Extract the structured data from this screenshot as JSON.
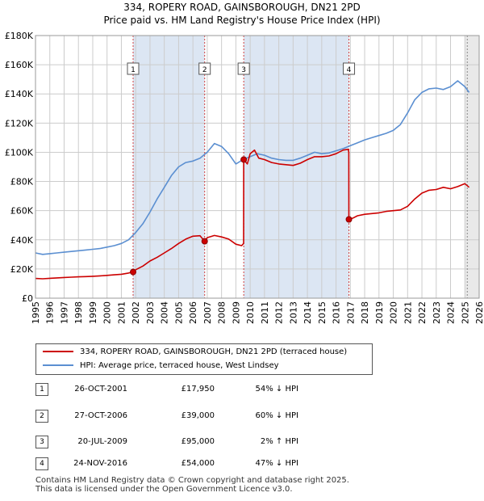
{
  "header": {
    "title_line1": "334, ROPERY ROAD, GAINSBOROUGH, DN21 2PD",
    "title_line2": "Price paid vs. HM Land Registry's House Price Index (HPI)"
  },
  "legend": {
    "price_label": "334, ROPERY ROAD, GAINSBOROUGH, DN21 2PD (terraced house)",
    "hpi_label": "HPI: Average price, terraced house, West Lindsey",
    "price_color": "#cc0000",
    "hpi_color": "#5b8fd1"
  },
  "sales": [
    {
      "num": "1",
      "date": "26-OCT-2001",
      "price": "£17,950",
      "hpi": "54% ↓ HPI"
    },
    {
      "num": "2",
      "date": "27-OCT-2006",
      "price": "£39,000",
      "hpi": "60% ↓ HPI"
    },
    {
      "num": "3",
      "date": "20-JUL-2009",
      "price": "£95,000",
      "hpi": "2% ↑ HPI"
    },
    {
      "num": "4",
      "date": "24-NOV-2016",
      "price": "£54,000",
      "hpi": "47% ↓ HPI"
    }
  ],
  "footer": {
    "line1": "Contains HM Land Registry data © Crown copyright and database right 2025.",
    "line2": "This data is licensed under the Open Government Licence v3.0."
  },
  "chart_data": {
    "type": "line",
    "title": "Price paid vs. HM Land Registry's House Price Index (HPI)",
    "xlim": [
      1995,
      2026
    ],
    "ylim": [
      0,
      180000
    ],
    "x_ticks": [
      "1995",
      "1996",
      "1997",
      "1998",
      "1999",
      "2000",
      "2001",
      "2002",
      "2003",
      "2004",
      "2005",
      "2006",
      "2007",
      "2008",
      "2009",
      "2010",
      "2011",
      "2012",
      "2013",
      "2014",
      "2015",
      "2016",
      "2017",
      "2018",
      "2019",
      "2020",
      "2021",
      "2022",
      "2023",
      "2024",
      "2025",
      "2026"
    ],
    "y_ticks": [
      {
        "v": 0,
        "label": "£0"
      },
      {
        "v": 20000,
        "label": "£20K"
      },
      {
        "v": 40000,
        "label": "£40K"
      },
      {
        "v": 60000,
        "label": "£60K"
      },
      {
        "v": 80000,
        "label": "£80K"
      },
      {
        "v": 100000,
        "label": "£100K"
      },
      {
        "v": 120000,
        "label": "£120K"
      },
      {
        "v": 140000,
        "label": "£140K"
      },
      {
        "v": 160000,
        "label": "£160K"
      },
      {
        "v": 180000,
        "label": "£180K"
      }
    ],
    "sale_x": [
      2001.82,
      2006.82,
      2009.55,
      2016.9
    ],
    "sale_y": [
      17950,
      39000,
      95000,
      54000
    ],
    "sale_labels": [
      "1",
      "2",
      "3",
      "4"
    ],
    "shaded_spans": [
      [
        2001.82,
        2006.82
      ],
      [
        2009.55,
        2016.9
      ]
    ],
    "forecast_start": 2025.0,
    "series": [
      {
        "name": "334, ROPERY ROAD, GAINSBOROUGH, DN21 2PD (terraced house)",
        "color": "#cc0000",
        "x": [
          1995.0,
          1995.5,
          1996.0,
          1996.5,
          1997.0,
          1997.5,
          1998.0,
          1998.5,
          1999.0,
          1999.5,
          2000.0,
          2000.5,
          2001.0,
          2001.5,
          2001.82,
          2002.0,
          2002.5,
          2003.0,
          2003.5,
          2004.0,
          2004.5,
          2005.0,
          2005.5,
          2006.0,
          2006.5,
          2006.82,
          2007.0,
          2007.5,
          2008.0,
          2008.5,
          2009.0,
          2009.4,
          2009.54,
          2009.55,
          2009.8,
          2010.0,
          2010.3,
          2010.6,
          2011.0,
          2011.5,
          2012.0,
          2012.5,
          2013.0,
          2013.5,
          2014.0,
          2014.5,
          2015.0,
          2015.5,
          2016.0,
          2016.5,
          2016.85,
          2016.89,
          2016.9,
          2017.2,
          2017.5,
          2018.0,
          2018.5,
          2019.0,
          2019.5,
          2020.0,
          2020.5,
          2021.0,
          2021.5,
          2022.0,
          2022.5,
          2023.0,
          2023.5,
          2024.0,
          2024.5,
          2025.0,
          2025.3
        ],
        "values": [
          13500,
          13300,
          13600,
          13900,
          14200,
          14400,
          14600,
          14800,
          15000,
          15300,
          15600,
          16000,
          16400,
          17200,
          17950,
          19500,
          22000,
          25500,
          28000,
          31000,
          34000,
          37500,
          40500,
          42500,
          42800,
          39000,
          41500,
          43000,
          42000,
          40500,
          37000,
          36000,
          37500,
          95000,
          92000,
          99000,
          101500,
          96000,
          95000,
          93000,
          92000,
          91500,
          91000,
          92500,
          95000,
          97000,
          97000,
          97500,
          99000,
          101500,
          102000,
          100000,
          54000,
          55000,
          56500,
          57500,
          58000,
          58500,
          59500,
          60000,
          60500,
          63000,
          68000,
          72000,
          74000,
          74500,
          76000,
          75000,
          76500,
          78500,
          76000
        ]
      },
      {
        "name": "HPI: Average price, terraced house, West Lindsey",
        "color": "#5b8fd1",
        "x": [
          1995.0,
          1995.5,
          1996.0,
          1996.5,
          1997.0,
          1997.5,
          1998.0,
          1998.5,
          1999.0,
          1999.5,
          2000.0,
          2000.5,
          2001.0,
          2001.5,
          2002.0,
          2002.5,
          2003.0,
          2003.5,
          2004.0,
          2004.5,
          2005.0,
          2005.5,
          2006.0,
          2006.5,
          2007.0,
          2007.5,
          2008.0,
          2008.5,
          2009.0,
          2009.5,
          2010.0,
          2010.5,
          2011.0,
          2011.5,
          2012.0,
          2012.5,
          2013.0,
          2013.5,
          2014.0,
          2014.5,
          2015.0,
          2015.5,
          2016.0,
          2016.5,
          2017.0,
          2017.5,
          2018.0,
          2018.5,
          2019.0,
          2019.5,
          2020.0,
          2020.5,
          2021.0,
          2021.5,
          2022.0,
          2022.5,
          2023.0,
          2023.5,
          2024.0,
          2024.5,
          2025.0,
          2025.3
        ],
        "values": [
          31000,
          30000,
          30500,
          31000,
          31500,
          32000,
          32500,
          33000,
          33500,
          34000,
          35000,
          36000,
          37500,
          40000,
          45000,
          51000,
          59000,
          68000,
          76000,
          84000,
          90000,
          93000,
          94000,
          96000,
          100000,
          106000,
          104000,
          99000,
          92000,
          95000,
          97000,
          99000,
          98000,
          96000,
          95000,
          94500,
          94500,
          96000,
          98000,
          100000,
          99000,
          99500,
          101000,
          102500,
          104500,
          106500,
          108500,
          110000,
          111500,
          113000,
          115000,
          119000,
          127000,
          136000,
          141000,
          143500,
          144000,
          143000,
          145000,
          149000,
          145000,
          141000
        ]
      }
    ]
  }
}
